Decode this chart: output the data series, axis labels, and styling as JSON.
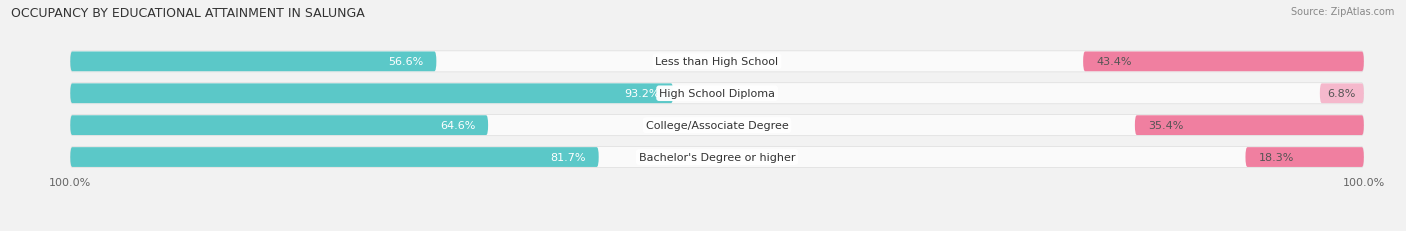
{
  "title": "OCCUPANCY BY EDUCATIONAL ATTAINMENT IN SALUNGA",
  "source": "Source: ZipAtlas.com",
  "categories": [
    "Less than High School",
    "High School Diploma",
    "College/Associate Degree",
    "Bachelor's Degree or higher"
  ],
  "owner_pct": [
    56.6,
    93.2,
    64.6,
    81.7
  ],
  "renter_pct": [
    43.4,
    6.8,
    35.4,
    18.3
  ],
  "owner_color": "#5bc8c8",
  "renter_color_strong": "#f07fa0",
  "renter_color_weak": "#f5b8cc",
  "bg_color": "#f2f2f2",
  "bar_bg_color": "#e8e8e8",
  "row_bg_color": "#fafafa",
  "title_fontsize": 9,
  "label_fontsize": 8,
  "pct_fontsize": 8,
  "axis_label_fontsize": 8,
  "bar_height": 0.62,
  "figsize": [
    14.06,
    2.32
  ],
  "x_axis_labels": [
    "100.0%",
    "100.0%"
  ]
}
